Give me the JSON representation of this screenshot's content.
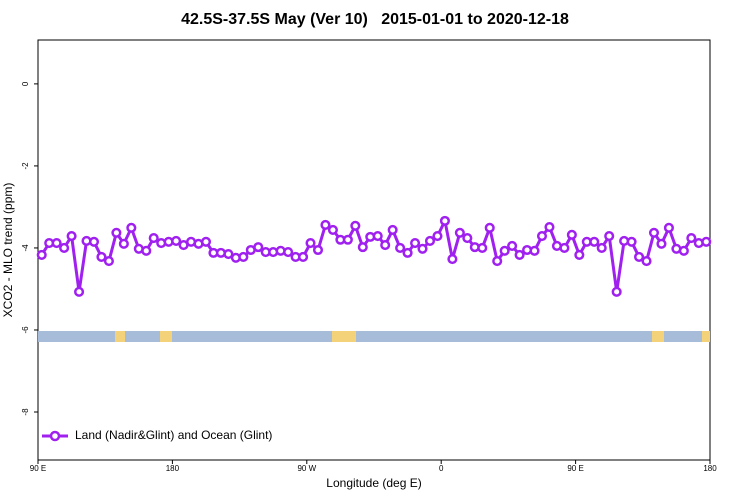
{
  "chart_data": {
    "type": "line",
    "title": "42.5S-37.5S May (Ver 10)   2015-01-01 to 2020-12-18",
    "x_label": "Longitude (deg E)",
    "y_label": "XCO2 - MLO trend (ppm)",
    "xlim": [
      90,
      540
    ],
    "xticks": [
      {
        "value": 90,
        "label": "90 E"
      },
      180,
      {
        "value": 270,
        "label": "90 W"
      },
      {
        "value": 360,
        "label": "0"
      },
      {
        "value": 450,
        "label": "90 E"
      },
      {
        "value": 540,
        "label": "180"
      }
    ],
    "ylim": [
      -9.17,
      1.07
    ],
    "yticks": [
      0,
      -2,
      -4,
      -6,
      -8
    ],
    "legend_position": "bottom-left",
    "x": [
      92.5,
      97.5,
      102.5,
      107.5,
      112.5,
      117.5,
      122.5,
      127.5,
      132.5,
      137.5,
      142.5,
      147.5,
      152.5,
      157.5,
      162.5,
      167.5,
      172.5,
      177.5,
      182.5,
      187.5,
      192.5,
      197.5,
      202.5,
      207.5,
      212.5,
      217.5,
      222.5,
      227.5,
      232.5,
      237.5,
      242.5,
      247.5,
      252.5,
      257.5,
      262.5,
      267.5,
      272.5,
      277.5,
      282.5,
      287.5,
      292.5,
      297.5,
      302.5,
      307.5,
      312.5,
      317.5,
      322.5,
      327.5,
      332.5,
      337.5,
      342.5,
      347.5,
      352.5,
      357.5,
      362.5,
      367.5,
      372.5,
      377.5,
      382.5,
      387.5,
      392.5,
      397.5,
      402.5,
      407.5,
      412.5,
      417.5,
      422.5,
      427.5,
      432.5,
      437.5,
      442.5,
      447.5,
      452.5,
      457.5,
      462.5,
      467.5,
      472.5,
      477.5,
      482.5,
      487.5,
      492.5,
      497.5,
      502.5,
      507.5,
      512.5,
      517.5,
      522.5,
      527.5,
      532.5,
      537.5
    ],
    "series": [
      {
        "name": "Land (Nadir&Glint) and Ocean (Glint)",
        "color": "#a020f0",
        "values": [
          -4.17,
          -3.88,
          -3.88,
          -4.0,
          -3.71,
          -5.07,
          -3.83,
          -3.85,
          -4.22,
          -4.32,
          -3.63,
          -3.9,
          -3.51,
          -4.02,
          -4.07,
          -3.76,
          -3.88,
          -3.85,
          -3.83,
          -3.93,
          -3.85,
          -3.9,
          -3.85,
          -4.12,
          -4.12,
          -4.15,
          -4.24,
          -4.22,
          -4.05,
          -3.98,
          -4.1,
          -4.1,
          -4.07,
          -4.1,
          -4.22,
          -4.22,
          -3.88,
          -4.05,
          -3.44,
          -3.56,
          -3.8,
          -3.8,
          -3.46,
          -3.98,
          -3.73,
          -3.71,
          -3.93,
          -3.56,
          -4.0,
          -4.12,
          -3.88,
          -4.02,
          -3.83,
          -3.71,
          -3.34,
          -4.27,
          -3.63,
          -3.76,
          -3.98,
          -4.0,
          -3.51,
          -4.32,
          -4.07,
          -3.95,
          -4.17,
          -4.05,
          -4.07,
          -3.71,
          -3.49,
          -3.95,
          -4.0,
          -3.68,
          -4.17,
          -3.85,
          -3.85,
          -4.0,
          -3.71,
          -5.07,
          -3.83,
          -3.85,
          -4.22,
          -4.32,
          -3.63,
          -3.9,
          -3.51,
          -4.02,
          -4.07,
          -3.76,
          -3.88,
          -3.85
        ]
      }
    ]
  }
}
